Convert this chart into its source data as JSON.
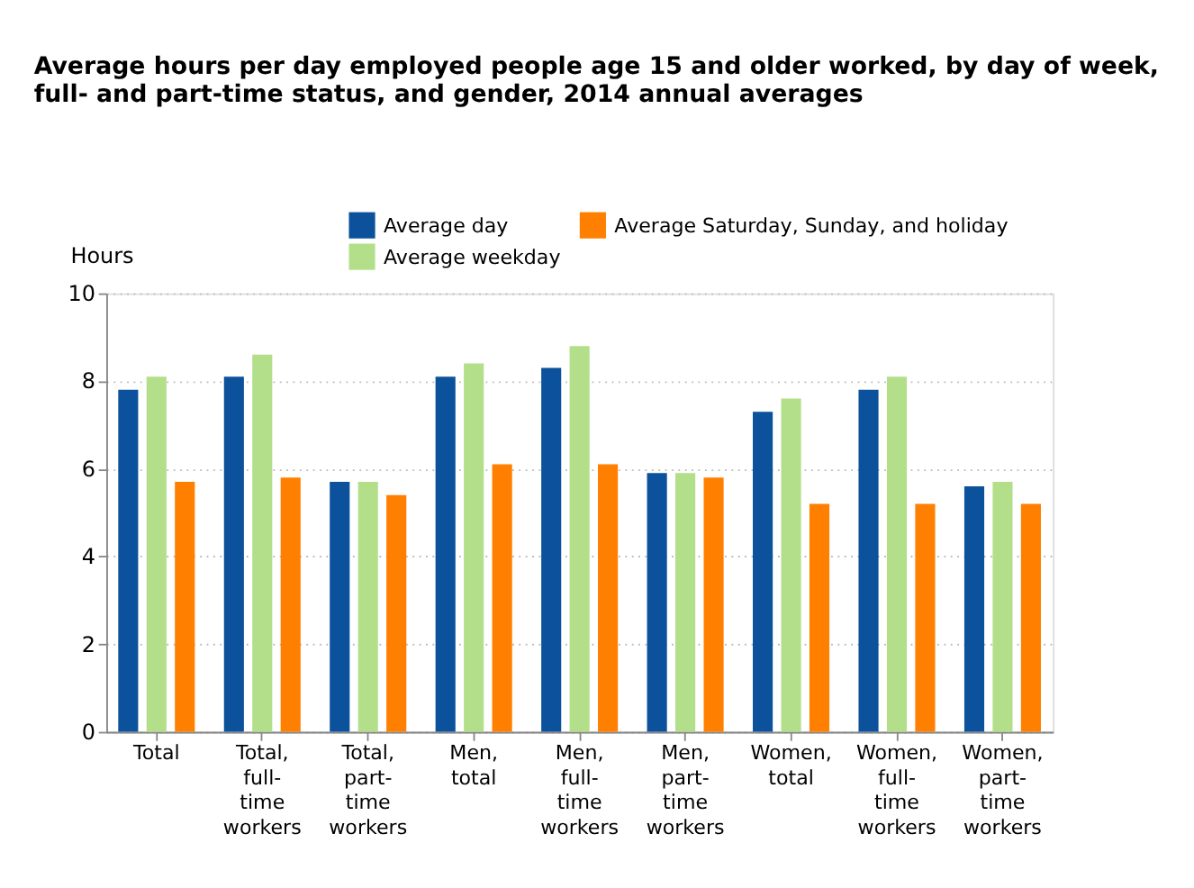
{
  "chart_data": {
    "type": "bar",
    "title": "Average hours per day employed people age 15 and older worked, by day of week, full- and part-time status, and gender, 2014 annual averages",
    "ylabel": "Hours",
    "categories": [
      "Total",
      "Total, full-time workers",
      "Total, part-time workers",
      "Men, total",
      "Men, full-time workers",
      "Men, part-time workers",
      "Women, total",
      "Women, full-time workers",
      "Women, part-time workers"
    ],
    "series": [
      {
        "name": "Average day",
        "color": "#0b519b",
        "values": [
          7.8,
          8.1,
          5.7,
          8.1,
          8.3,
          5.9,
          7.3,
          7.8,
          5.6
        ]
      },
      {
        "name": "Average weekday",
        "color": "#b3df8a",
        "values": [
          8.1,
          8.6,
          5.7,
          8.4,
          8.8,
          5.9,
          7.6,
          8.1,
          5.7
        ]
      },
      {
        "name": "Average Saturday, Sunday, and holiday",
        "color": "#ff7f00",
        "values": [
          5.7,
          5.8,
          5.4,
          6.1,
          6.1,
          5.8,
          5.2,
          5.2,
          5.2
        ]
      }
    ],
    "ylim": [
      0,
      10
    ],
    "yticks": [
      0,
      2,
      4,
      6,
      8,
      10
    ],
    "grid": "y",
    "legend": "top"
  }
}
